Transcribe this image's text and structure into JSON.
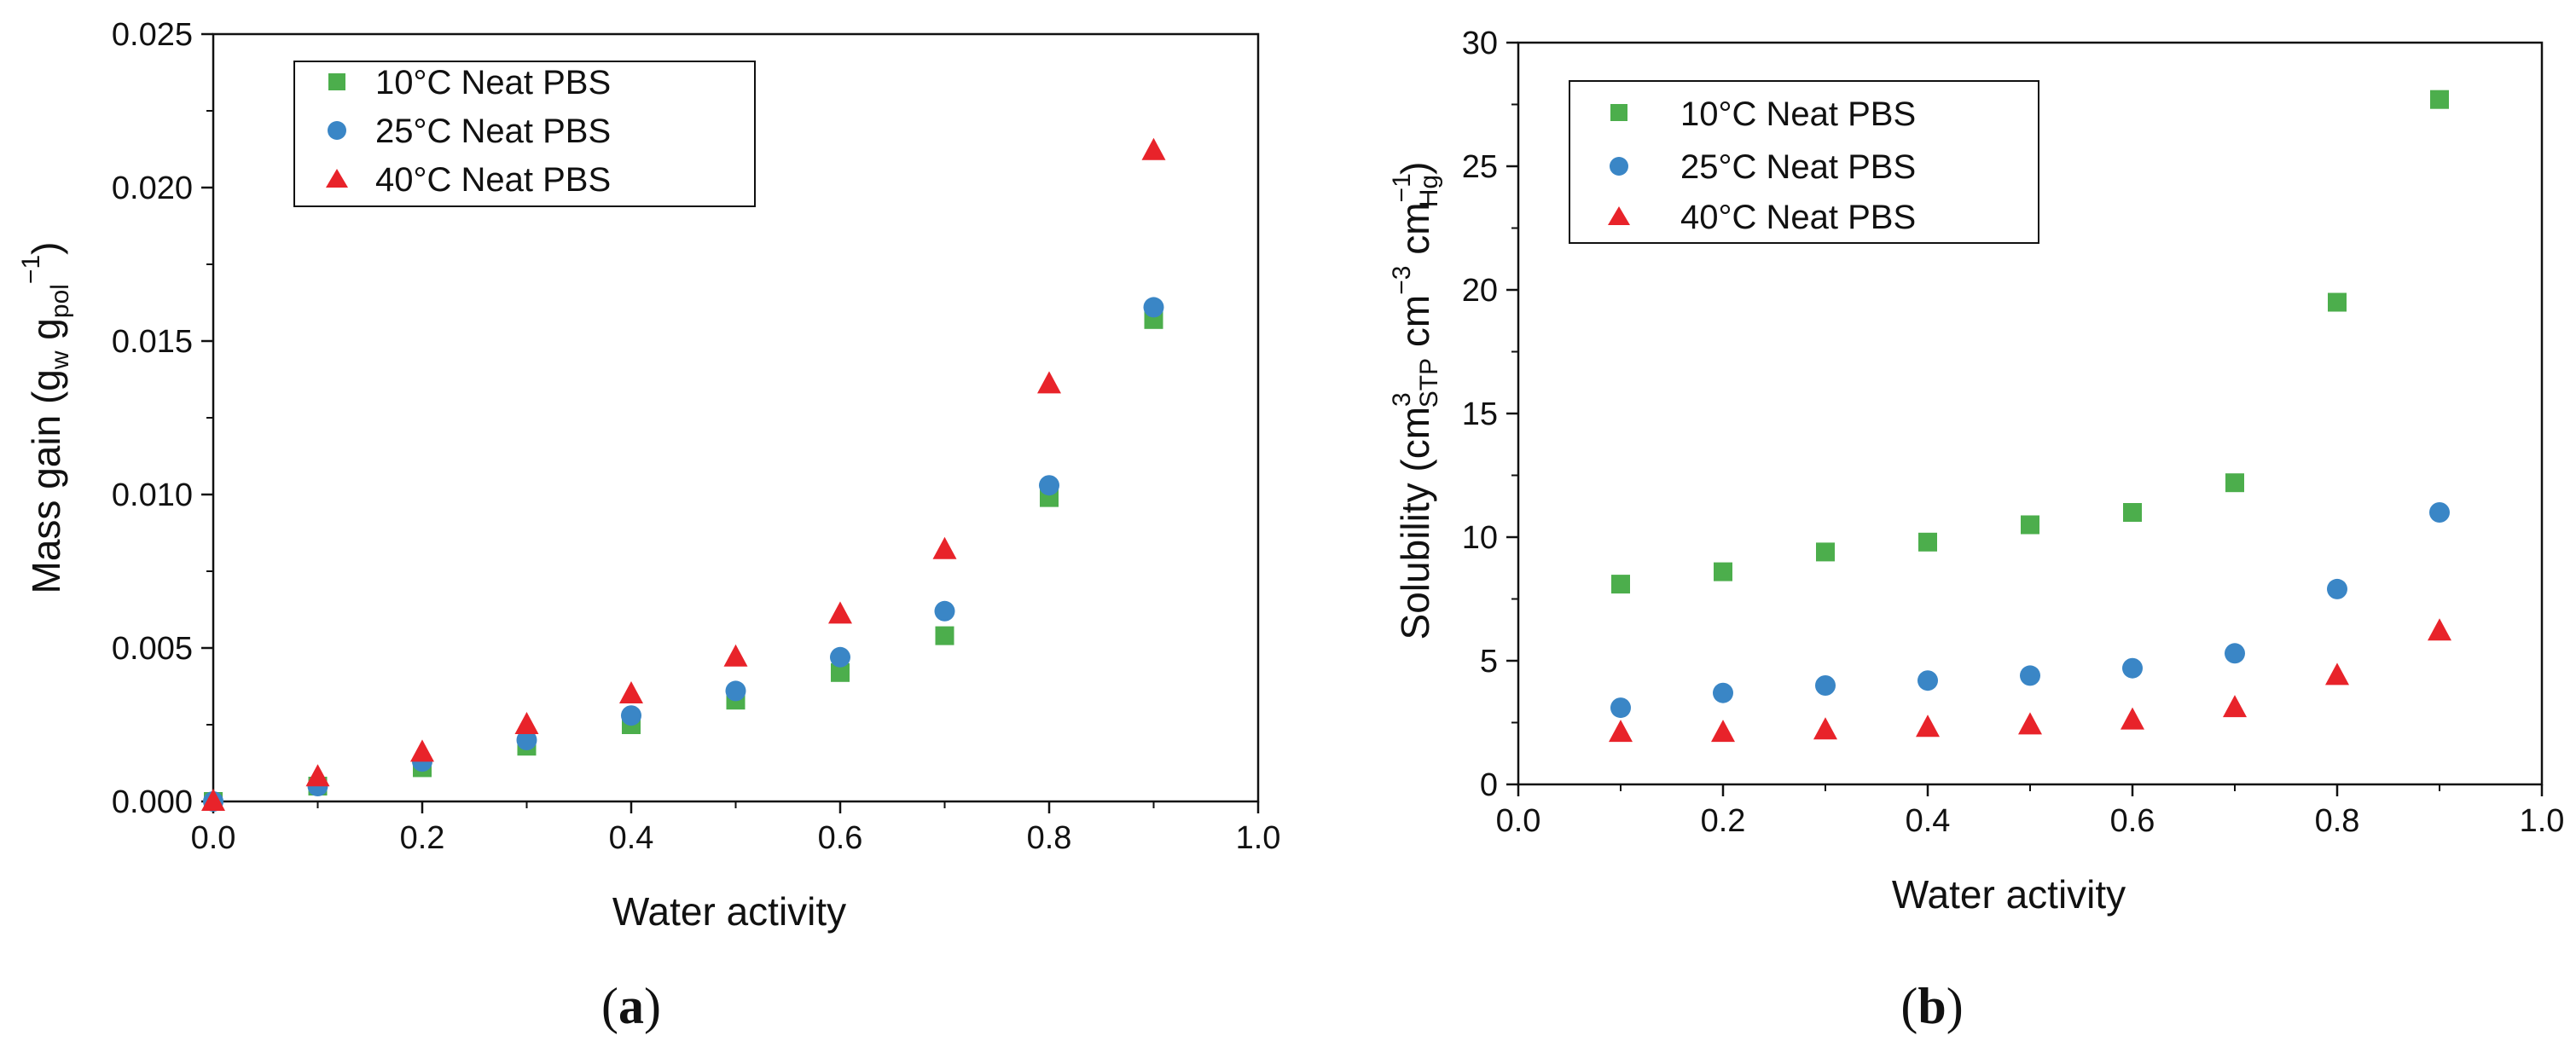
{
  "colors": {
    "green": "#4cae4c",
    "blue": "#3a86c6",
    "red": "#e8232a",
    "axis": "#111111"
  },
  "chart_data": [
    {
      "type": "scatter",
      "id": "a",
      "caption": {
        "open": "(",
        "letter": "a",
        "close": ")"
      },
      "xlabel": "Water activity",
      "ylabel": {
        "main": "Mass gain (g",
        "sub1": "w",
        "mid": " g",
        "sub2": "pol",
        "sup": "−1",
        "close": ")"
      },
      "xlim": [
        0.0,
        1.0
      ],
      "ylim": [
        0.0,
        0.025
      ],
      "xticks": [
        "0.0",
        "0.2",
        "0.4",
        "0.6",
        "0.8",
        "1.0"
      ],
      "yticks": [
        "0.000",
        "0.005",
        "0.010",
        "0.015",
        "0.020",
        "0.025"
      ],
      "legend": {
        "placement": "top-left"
      },
      "series": [
        {
          "name": "10°C Neat PBS",
          "marker": "square",
          "color": "#4cae4c",
          "x": [
            0.0,
            0.1,
            0.2,
            0.3,
            0.4,
            0.5,
            0.6,
            0.7,
            0.8,
            0.9
          ],
          "y": [
            0.0,
            0.0005,
            0.0011,
            0.0018,
            0.0025,
            0.0033,
            0.0042,
            0.0054,
            0.0099,
            0.0157
          ]
        },
        {
          "name": "25°C Neat PBS",
          "marker": "circle",
          "color": "#3a86c6",
          "x": [
            0.0,
            0.1,
            0.2,
            0.3,
            0.4,
            0.5,
            0.6,
            0.7,
            0.8,
            0.9
          ],
          "y": [
            0.0,
            0.0005,
            0.0013,
            0.002,
            0.0028,
            0.0036,
            0.0047,
            0.0062,
            0.0103,
            0.0161
          ]
        },
        {
          "name": "40°C Neat PBS",
          "marker": "triangle",
          "color": "#e8232a",
          "x": [
            0.0,
            0.1,
            0.2,
            0.3,
            0.4,
            0.5,
            0.6,
            0.7,
            0.8,
            0.9
          ],
          "y": [
            0.0,
            0.0008,
            0.0016,
            0.0025,
            0.0035,
            0.0047,
            0.0061,
            0.0082,
            0.0136,
            0.0212
          ]
        }
      ]
    },
    {
      "type": "scatter",
      "id": "b",
      "caption": {
        "open": "(",
        "letter": "b",
        "close": ")"
      },
      "xlabel": "Water activity",
      "ylabel": {
        "main": "Solubility (cm",
        "sup1": "3",
        "sub1": "STP",
        "mid": " cm",
        "sup2": "−3",
        "mid2": " cm",
        "sup3": "−1",
        "sub3": "Hg",
        "close": ")"
      },
      "xlim": [
        0.0,
        1.0
      ],
      "ylim": [
        0,
        30
      ],
      "xticks": [
        "0.0",
        "0.2",
        "0.4",
        "0.6",
        "0.8",
        "1.0"
      ],
      "yticks": [
        "0",
        "5",
        "10",
        "15",
        "20",
        "25",
        "30"
      ],
      "legend": {
        "placement": "top-left"
      },
      "series": [
        {
          "name": "10°C Neat PBS",
          "marker": "square",
          "color": "#4cae4c",
          "x": [
            0.1,
            0.2,
            0.3,
            0.4,
            0.5,
            0.6,
            0.7,
            0.8,
            0.9
          ],
          "y": [
            8.1,
            8.6,
            9.4,
            9.8,
            10.5,
            11.0,
            12.2,
            19.5,
            27.7
          ]
        },
        {
          "name": "25°C Neat PBS",
          "marker": "circle",
          "color": "#3a86c6",
          "x": [
            0.1,
            0.2,
            0.3,
            0.4,
            0.5,
            0.6,
            0.7,
            0.8,
            0.9
          ],
          "y": [
            3.1,
            3.7,
            4.0,
            4.2,
            4.4,
            4.7,
            5.3,
            7.9,
            11.0
          ]
        },
        {
          "name": "40°C Neat PBS",
          "marker": "triangle",
          "color": "#e8232a",
          "x": [
            0.1,
            0.2,
            0.3,
            0.4,
            0.5,
            0.6,
            0.7,
            0.8,
            0.9
          ],
          "y": [
            2.1,
            2.1,
            2.2,
            2.3,
            2.4,
            2.6,
            3.1,
            4.4,
            6.2
          ]
        }
      ]
    }
  ]
}
